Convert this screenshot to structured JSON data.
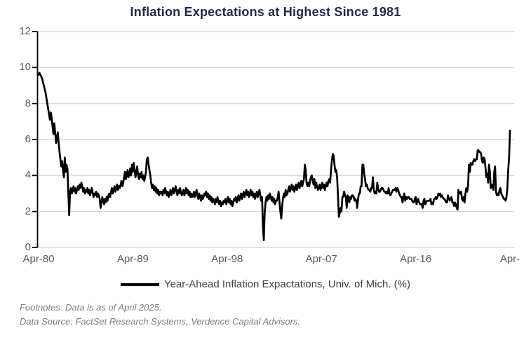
{
  "title": "Inflation Expectations at Highest Since 1981",
  "legend": {
    "label": "Year-Ahead Inflation Expactations, Univ. of Mich. (%)"
  },
  "footnotes": {
    "line1": "Footnotes: Data is as of April 2025.",
    "line2": "Data Source: FactSet Research Systems, Verdence Capital Advisors."
  },
  "colors": {
    "title": "#1f2b4d",
    "tick_label": "#595959",
    "gridline": "#d9d9d9",
    "axis": "#000000",
    "line": "#000000",
    "legend_text": "#404040",
    "footnote": "#7f7f7f",
    "background": "#ffffff"
  },
  "chart_data": {
    "type": "line",
    "title": "Inflation Expectations at Highest Since 1981",
    "xlabel": "",
    "ylabel": "",
    "ylim": [
      0,
      12
    ],
    "y_ticks": [
      0,
      2,
      4,
      6,
      8,
      10,
      12
    ],
    "x_ticks": [
      "Apr-80",
      "Apr-89",
      "Apr-98",
      "Apr-07",
      "Apr-16",
      "Apr-"
    ],
    "x_tick_positions_years": [
      0,
      9,
      18,
      27,
      36,
      45
    ],
    "grid": "horizontal",
    "legend_position": "bottom",
    "series": [
      {
        "name": "Year-Ahead Inflation Expactations, Univ. of Mich. (%)",
        "start": "Apr-1980",
        "end": "Apr-2025",
        "frequency": "monthly",
        "values": [
          9.6,
          9.7,
          9.6,
          9.5,
          9.4,
          9.2,
          9.0,
          8.8,
          8.6,
          8.3,
          8.0,
          7.7,
          7.4,
          7.1,
          7.5,
          7.2,
          6.7,
          6.3,
          6.9,
          6.4,
          5.8,
          6.1,
          6.4,
          5.8,
          5.3,
          4.9,
          4.5,
          4.8,
          4.3,
          3.9,
          5.0,
          4.2,
          4.6,
          4.4,
          3.2,
          1.8,
          3.0,
          3.3,
          3.0,
          3.2,
          3.4,
          3.1,
          3.3,
          3.0,
          3.2,
          3.4,
          3.2,
          3.5,
          3.3,
          3.6,
          3.4,
          3.1,
          3.3,
          3.0,
          3.2,
          3.1,
          3.3,
          3.0,
          3.2,
          2.9,
          3.1,
          3.3,
          3.0,
          2.8,
          3.0,
          2.9,
          3.1,
          2.8,
          3.0,
          2.9,
          2.7,
          2.2,
          2.5,
          2.8,
          2.6,
          2.4,
          2.7,
          2.5,
          2.8,
          2.6,
          2.9,
          3.0,
          2.8,
          3.1,
          3.3,
          3.0,
          3.2,
          3.4,
          3.1,
          3.3,
          3.5,
          3.2,
          3.4,
          3.3,
          3.5,
          3.7,
          3.4,
          3.6,
          3.9,
          4.2,
          3.8,
          4.0,
          4.3,
          3.9,
          4.1,
          4.4,
          4.0,
          4.6,
          4.2,
          4.7,
          4.3,
          3.9,
          4.2,
          4.5,
          4.0,
          3.8,
          4.1,
          3.9,
          4.2,
          3.8,
          4.0,
          3.7,
          3.9,
          4.2,
          4.9,
          5.0,
          4.6,
          4.3,
          4.0,
          3.6,
          3.3,
          3.5,
          3.2,
          3.4,
          3.1,
          3.3,
          3.0,
          3.2,
          2.9,
          3.1,
          3.0,
          3.1,
          2.9,
          3.2,
          3.0,
          3.3,
          3.1,
          2.9,
          3.1,
          2.8,
          3.0,
          3.2,
          2.9,
          3.1,
          3.3,
          3.0,
          3.2,
          3.4,
          3.1,
          2.9,
          3.2,
          3.0,
          3.3,
          3.1,
          2.9,
          3.0,
          3.2,
          2.9,
          3.1,
          3.3,
          3.0,
          3.2,
          2.9,
          3.1,
          2.8,
          3.0,
          2.8,
          2.9,
          3.1,
          2.8,
          3.0,
          3.2,
          2.9,
          2.7,
          3.0,
          2.8,
          2.6,
          2.9,
          2.7,
          2.8,
          3.0,
          2.9,
          3.1,
          2.8,
          3.0,
          2.7,
          2.9,
          2.6,
          2.8,
          2.5,
          2.7,
          2.6,
          2.4,
          2.7,
          2.5,
          2.8,
          2.6,
          2.4,
          2.6,
          2.3,
          2.5,
          2.4,
          2.6,
          2.5,
          2.7,
          2.4,
          2.6,
          2.8,
          2.5,
          2.7,
          2.4,
          2.6,
          2.3,
          2.5,
          2.7,
          2.6,
          2.8,
          2.5,
          2.7,
          2.9,
          2.6,
          2.8,
          3.0,
          2.7,
          2.9,
          3.1,
          2.8,
          3.0,
          3.2,
          2.9,
          3.1,
          2.8,
          3.0,
          3.2,
          2.9,
          3.1,
          2.8,
          3.0,
          2.7,
          2.9,
          3.1,
          2.8,
          3.0,
          3.2,
          2.9,
          2.6,
          2.8,
          1.2,
          0.4,
          1.9,
          2.5,
          2.8,
          2.6,
          2.9,
          2.7,
          3.0,
          2.8,
          2.6,
          2.8,
          2.5,
          2.7,
          2.4,
          2.6,
          2.6,
          2.8,
          3.1,
          2.5,
          2.0,
          1.6,
          2.3,
          2.7,
          3.0,
          2.8,
          3.2,
          2.9,
          3.0,
          3.2,
          3.4,
          3.1,
          3.3,
          3.5,
          3.2,
          3.4,
          3.1,
          3.3,
          3.5,
          3.2,
          3.4,
          3.6,
          3.3,
          3.5,
          3.7,
          3.4,
          3.6,
          3.8,
          4.6,
          4.3,
          3.6,
          3.4,
          3.6,
          3.4,
          3.7,
          3.9,
          4.0,
          3.7,
          3.5,
          3.8,
          3.3,
          3.6,
          3.4,
          3.2,
          3.3,
          3.5,
          3.2,
          3.4,
          3.6,
          3.3,
          3.5,
          3.2,
          3.4,
          3.6,
          3.4,
          3.7,
          3.8,
          3.6,
          4.3,
          4.8,
          5.2,
          5.1,
          4.6,
          4.2,
          4.3,
          3.9,
          2.9,
          1.7,
          1.9,
          2.2,
          2.0,
          2.8,
          2.8,
          3.1,
          2.9,
          2.8,
          2.2,
          2.9,
          2.7,
          2.5,
          2.8,
          2.7,
          2.9,
          2.9,
          2.8,
          2.6,
          2.7,
          2.6,
          2.2,
          2.7,
          3.0,
          3.0,
          3.4,
          3.4,
          4.6,
          4.6,
          4.1,
          3.8,
          3.4,
          3.5,
          3.3,
          3.2,
          3.2,
          3.1,
          3.3,
          3.3,
          3.9,
          3.2,
          3.0,
          3.1,
          3.0,
          3.6,
          3.3,
          3.1,
          3.1,
          3.2,
          3.3,
          3.3,
          3.2,
          3.1,
          3.1,
          3.0,
          3.1,
          3.0,
          3.3,
          3.0,
          2.9,
          3.0,
          3.1,
          3.2,
          3.2,
          3.2,
          3.3,
          3.1,
          3.3,
          3.2,
          3.0,
          2.9,
          2.8,
          2.8,
          2.5,
          2.8,
          3.0,
          2.6,
          2.8,
          2.7,
          2.8,
          2.8,
          2.7,
          2.7,
          2.7,
          2.6,
          2.5,
          2.5,
          2.7,
          2.8,
          2.4,
          2.6,
          2.7,
          2.5,
          2.4,
          2.4,
          2.4,
          2.2,
          2.6,
          2.7,
          2.4,
          2.5,
          2.6,
          2.6,
          2.6,
          2.6,
          2.7,
          2.4,
          2.5,
          2.4,
          2.7,
          2.7,
          2.8,
          2.7,
          2.8,
          3.0,
          2.9,
          3.0,
          2.8,
          2.9,
          2.8,
          2.7,
          2.7,
          2.6,
          2.5,
          2.5,
          2.9,
          2.7,
          2.6,
          2.7,
          2.8,
          2.5,
          2.5,
          2.3,
          2.5,
          2.4,
          2.2,
          2.1,
          3.2,
          3.0,
          3.0,
          3.1,
          2.7,
          2.6,
          2.8,
          2.5,
          3.0,
          3.3,
          3.1,
          3.4,
          4.6,
          4.2,
          4.7,
          4.6,
          4.6,
          4.8,
          4.9,
          4.8,
          4.9,
          4.9,
          5.4,
          5.4,
          5.3,
          5.3,
          5.2,
          4.8,
          4.7,
          5.0,
          4.9,
          4.4,
          3.9,
          4.1,
          3.6,
          4.6,
          4.2,
          3.3,
          3.4,
          3.5,
          3.2,
          4.2,
          4.5,
          3.1,
          2.9,
          3.0,
          2.9,
          3.2,
          3.3,
          3.0,
          2.9,
          2.8,
          2.7,
          2.7,
          2.6,
          2.8,
          3.3,
          4.3,
          5.0,
          6.5
        ]
      }
    ]
  }
}
